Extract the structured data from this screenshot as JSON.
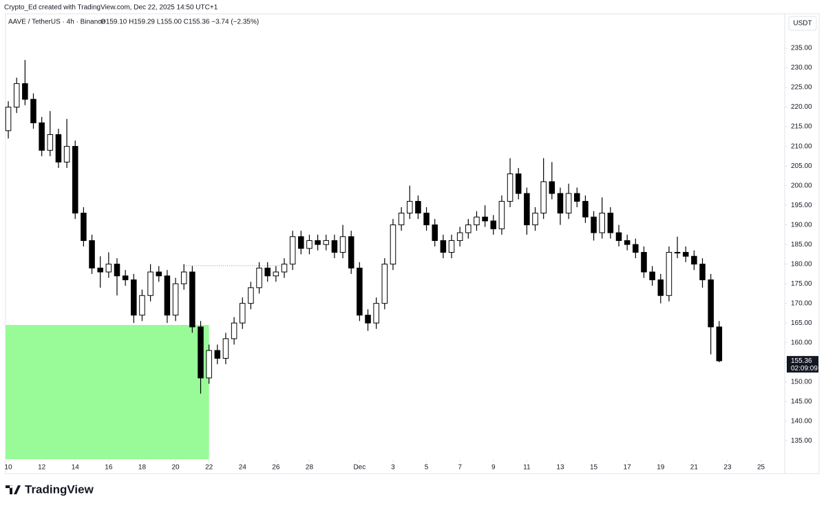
{
  "header": {
    "credit": "Crypto_Ed created with TradingView.com, Dec 22, 2025 14:50 UTC+1",
    "symbol": "AAVE / TetherUS · 4h · Binance",
    "ohlc": "O159.10 H159.29 L155.00 C155.36 −3.74 (−2.35%)",
    "currency": "USDT"
  },
  "footer": {
    "brand": "TradingView"
  },
  "chart_data": {
    "type": "candlestick",
    "up_color": "#ffffff",
    "down_color": "#000000",
    "border_color": "#000000",
    "xlim": [
      "2025-11-09T20:00",
      "2025-12-26T10:00"
    ],
    "ylim": [
      130.3,
      239.4
    ],
    "xticks": [
      {
        "value": "2025-11-10T00:00",
        "label": "10"
      },
      {
        "value": "2025-11-12T00:00",
        "label": "12"
      },
      {
        "value": "2025-11-14T00:00",
        "label": "14"
      },
      {
        "value": "2025-11-16T00:00",
        "label": "16"
      },
      {
        "value": "2025-11-18T00:00",
        "label": "18"
      },
      {
        "value": "2025-11-20T00:00",
        "label": "20"
      },
      {
        "value": "2025-11-22T00:00",
        "label": "22"
      },
      {
        "value": "2025-11-24T00:00",
        "label": "24"
      },
      {
        "value": "2025-11-26T00:00",
        "label": "26"
      },
      {
        "value": "2025-11-28T00:00",
        "label": "28"
      },
      {
        "value": "2025-12-01T00:00",
        "label": "Dec"
      },
      {
        "value": "2025-12-03T00:00",
        "label": "3"
      },
      {
        "value": "2025-12-05T00:00",
        "label": "5"
      },
      {
        "value": "2025-12-07T00:00",
        "label": "7"
      },
      {
        "value": "2025-12-09T00:00",
        "label": "9"
      },
      {
        "value": "2025-12-11T00:00",
        "label": "11"
      },
      {
        "value": "2025-12-13T00:00",
        "label": "13"
      },
      {
        "value": "2025-12-15T00:00",
        "label": "15"
      },
      {
        "value": "2025-12-17T00:00",
        "label": "17"
      },
      {
        "value": "2025-12-19T00:00",
        "label": "19"
      },
      {
        "value": "2025-12-21T00:00",
        "label": "21"
      },
      {
        "value": "2025-12-23T00:00",
        "label": "23"
      },
      {
        "value": "2025-12-25T00:00",
        "label": "25"
      }
    ],
    "yticks": [
      {
        "value": 135,
        "label": "135.00"
      },
      {
        "value": 140,
        "label": "140.00"
      },
      {
        "value": 145,
        "label": "145.00"
      },
      {
        "value": 150,
        "label": "150.00"
      },
      {
        "value": 155,
        "label": "155.00"
      },
      {
        "value": 160,
        "label": "160.00"
      },
      {
        "value": 165,
        "label": "165.00"
      },
      {
        "value": 170,
        "label": "170.00"
      },
      {
        "value": 175,
        "label": "175.00"
      },
      {
        "value": 180,
        "label": "180.00"
      },
      {
        "value": 185,
        "label": "185.00"
      },
      {
        "value": 190,
        "label": "190.00"
      },
      {
        "value": 195,
        "label": "195.00"
      },
      {
        "value": 200,
        "label": "200.00"
      },
      {
        "value": 205,
        "label": "205.00"
      },
      {
        "value": 210,
        "label": "210.00"
      },
      {
        "value": 215,
        "label": "215.00"
      },
      {
        "value": 220,
        "label": "220.00"
      },
      {
        "value": 225,
        "label": "225.00"
      },
      {
        "value": 230,
        "label": "230.00"
      },
      {
        "value": 235,
        "label": "235.00"
      }
    ],
    "last_price": {
      "value": 155.36,
      "label": "155.36"
    },
    "countdown": "02:09:09",
    "zone": {
      "color": "#98fb98",
      "x0": "2025-11-09T20:00",
      "x1": "2025-11-22T00:00",
      "y0": 130.3,
      "y1": 164.5
    },
    "dotted_line": {
      "value": 179.6,
      "x0": "2025-11-20T12:00",
      "x1": "2025-11-26T16:00"
    },
    "x": [
      "2025-11-10T00:00",
      "2025-11-10T12:00",
      "2025-11-11T00:00",
      "2025-11-11T12:00",
      "2025-11-12T00:00",
      "2025-11-12T12:00",
      "2025-11-13T00:00",
      "2025-11-13T12:00",
      "2025-11-14T00:00",
      "2025-11-14T12:00",
      "2025-11-15T00:00",
      "2025-11-15T12:00",
      "2025-11-16T00:00",
      "2025-11-16T12:00",
      "2025-11-17T00:00",
      "2025-11-17T12:00",
      "2025-11-18T00:00",
      "2025-11-18T12:00",
      "2025-11-19T00:00",
      "2025-11-19T12:00",
      "2025-11-20T00:00",
      "2025-11-20T12:00",
      "2025-11-21T00:00",
      "2025-11-21T12:00",
      "2025-11-22T00:00",
      "2025-11-22T12:00",
      "2025-11-23T00:00",
      "2025-11-23T12:00",
      "2025-11-24T00:00",
      "2025-11-24T12:00",
      "2025-11-25T00:00",
      "2025-11-25T12:00",
      "2025-11-26T00:00",
      "2025-11-26T12:00",
      "2025-11-27T00:00",
      "2025-11-27T12:00",
      "2025-11-28T00:00",
      "2025-11-28T12:00",
      "2025-11-29T00:00",
      "2025-11-29T12:00",
      "2025-11-30T00:00",
      "2025-11-30T12:00",
      "2025-12-01T00:00",
      "2025-12-01T12:00",
      "2025-12-02T00:00",
      "2025-12-02T12:00",
      "2025-12-03T00:00",
      "2025-12-03T12:00",
      "2025-12-04T00:00",
      "2025-12-04T12:00",
      "2025-12-05T00:00",
      "2025-12-05T12:00",
      "2025-12-06T00:00",
      "2025-12-06T12:00",
      "2025-12-07T00:00",
      "2025-12-07T12:00",
      "2025-12-08T00:00",
      "2025-12-08T12:00",
      "2025-12-09T00:00",
      "2025-12-09T12:00",
      "2025-12-10T00:00",
      "2025-12-10T12:00",
      "2025-12-11T00:00",
      "2025-12-11T12:00",
      "2025-12-12T00:00",
      "2025-12-12T12:00",
      "2025-12-13T00:00",
      "2025-12-13T12:00",
      "2025-12-14T00:00",
      "2025-12-14T12:00",
      "2025-12-15T00:00",
      "2025-12-15T12:00",
      "2025-12-16T00:00",
      "2025-12-16T12:00",
      "2025-12-17T00:00",
      "2025-12-17T12:00",
      "2025-12-18T00:00",
      "2025-12-18T12:00",
      "2025-12-19T00:00",
      "2025-12-19T12:00",
      "2025-12-20T00:00",
      "2025-12-20T12:00",
      "2025-12-21T00:00",
      "2025-12-21T12:00",
      "2025-12-22T00:00",
      "2025-12-22T12:00"
    ],
    "open": [
      214,
      220,
      226,
      222,
      216,
      209,
      213,
      206,
      210,
      193,
      186,
      179,
      178,
      180,
      177,
      176,
      167,
      172,
      178,
      177,
      167,
      175,
      178,
      164,
      151,
      158,
      156,
      161,
      165,
      170,
      174,
      179,
      177,
      178,
      180,
      187,
      184,
      186,
      185,
      186,
      183,
      187,
      179,
      167,
      165,
      170,
      180,
      190,
      193,
      196,
      193,
      190,
      186,
      183,
      186,
      188,
      190,
      192,
      191,
      189,
      196,
      203,
      198,
      190,
      193,
      201,
      198,
      193,
      198,
      196,
      192,
      188,
      193,
      188,
      186,
      185,
      183,
      178,
      176,
      172,
      183,
      183,
      182,
      180,
      176,
      164
    ],
    "high": [
      221.5,
      227.5,
      232,
      223.5,
      217.5,
      219,
      214.5,
      217,
      211.5,
      194.5,
      187.5,
      182,
      183,
      181.5,
      178.5,
      177.5,
      173.5,
      180,
      179.5,
      178.5,
      176.5,
      180,
      179.5,
      165.5,
      159.5,
      159.5,
      162.5,
      166.5,
      171.5,
      175.5,
      180.5,
      180.5,
      179.5,
      181.5,
      188.5,
      188.5,
      187.5,
      187.5,
      187.5,
      187.5,
      190,
      188.5,
      180.5,
      168.5,
      171.5,
      181.5,
      191.5,
      194.5,
      200,
      197.5,
      194.5,
      191.5,
      187.5,
      187.5,
      189.5,
      191.5,
      193.5,
      195,
      192.5,
      197.5,
      207,
      204.5,
      199.5,
      194.5,
      207,
      206,
      199.5,
      200.5,
      199.5,
      197.5,
      193.5,
      197,
      194.5,
      190,
      187.5,
      186.5,
      184.5,
      179.5,
      177.5,
      184.5,
      187,
      184.5,
      183.5,
      181.5,
      177.5,
      165.5
    ],
    "low": [
      212,
      218.5,
      220.5,
      214.5,
      207.5,
      207.5,
      204.5,
      204.5,
      191.5,
      184.5,
      177.5,
      174,
      176.5,
      172,
      174.5,
      165,
      165.5,
      170.5,
      175.5,
      165,
      165.5,
      173.5,
      162.5,
      147,
      149.5,
      154.5,
      154.5,
      159.5,
      163.5,
      168.5,
      172.5,
      175.5,
      175.5,
      176.5,
      178.5,
      182.5,
      182.5,
      183.5,
      183.5,
      181.5,
      181.5,
      177.5,
      165.5,
      163,
      163.5,
      168.5,
      178.5,
      188.5,
      191.5,
      191.5,
      188.5,
      184.5,
      181.5,
      181.5,
      184.5,
      186.5,
      188.5,
      189.5,
      187.5,
      187.5,
      194.5,
      196.5,
      187.5,
      188.5,
      191.5,
      196.5,
      190,
      191.5,
      194.5,
      190.5,
      186,
      186.5,
      186.5,
      184.5,
      183.5,
      181.5,
      176.5,
      174.5,
      170,
      170.5,
      181.5,
      180.5,
      178.5,
      174,
      157,
      155
    ],
    "close": [
      220,
      226,
      222,
      216,
      209,
      213,
      206,
      210,
      193,
      186,
      179,
      178,
      180,
      177,
      176,
      167,
      172,
      178,
      177,
      167,
      175,
      178,
      164,
      151,
      158,
      156,
      161,
      165,
      170,
      174,
      179,
      177,
      178,
      180,
      187,
      184,
      186,
      185,
      186,
      183,
      187,
      179,
      167,
      165,
      170,
      180,
      190,
      193,
      196,
      193,
      190,
      186,
      183,
      186,
      188,
      190,
      192,
      191,
      189,
      196,
      203,
      198,
      190,
      193,
      201,
      198,
      193,
      198,
      196,
      192,
      188,
      193,
      188,
      186,
      185,
      183,
      178,
      176,
      172,
      183,
      183,
      182,
      180,
      176,
      164,
      155.36
    ]
  }
}
